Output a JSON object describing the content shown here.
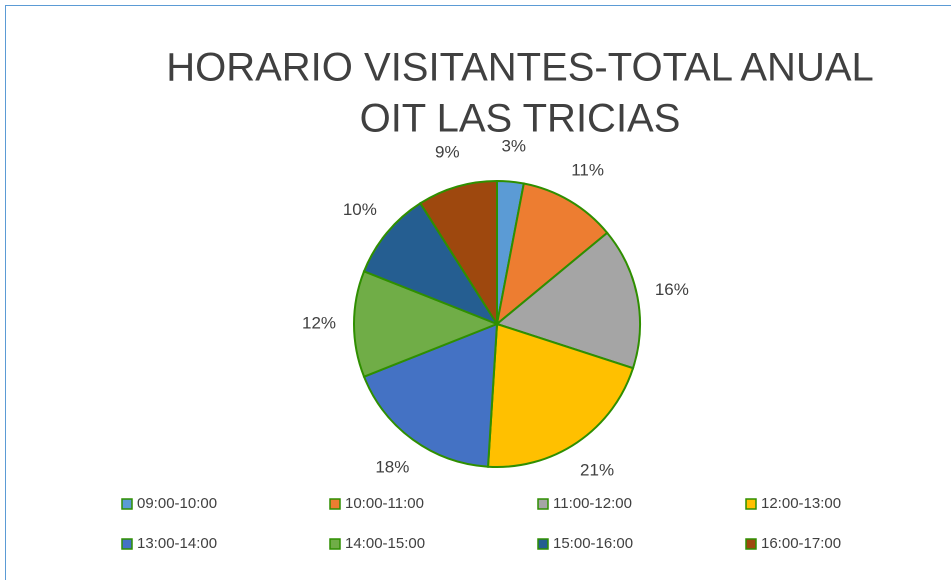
{
  "chart_data": {
    "type": "pie",
    "title": [
      "HORARIO VISITANTES-TOTAL ANUAL",
      "OIT LAS TRICIAS"
    ],
    "categories": [
      "09:00-10:00",
      "10:00-11:00",
      "11:00-12:00",
      "12:00-13:00",
      "13:00-14:00",
      "14:00-15:00",
      "15:00-16:00",
      "16:00-17:00"
    ],
    "values": [
      3,
      11,
      16,
      21,
      18,
      12,
      10,
      9
    ],
    "value_labels": [
      "3%",
      "11%",
      "16%",
      "21%",
      "18%",
      "12%",
      "10%",
      "9%"
    ],
    "colors": [
      "#5b9bd5",
      "#ed7d31",
      "#a5a5a5",
      "#ffc000",
      "#4472c4",
      "#70ad47",
      "#255e91",
      "#9e480e"
    ],
    "legend": "bottom"
  }
}
